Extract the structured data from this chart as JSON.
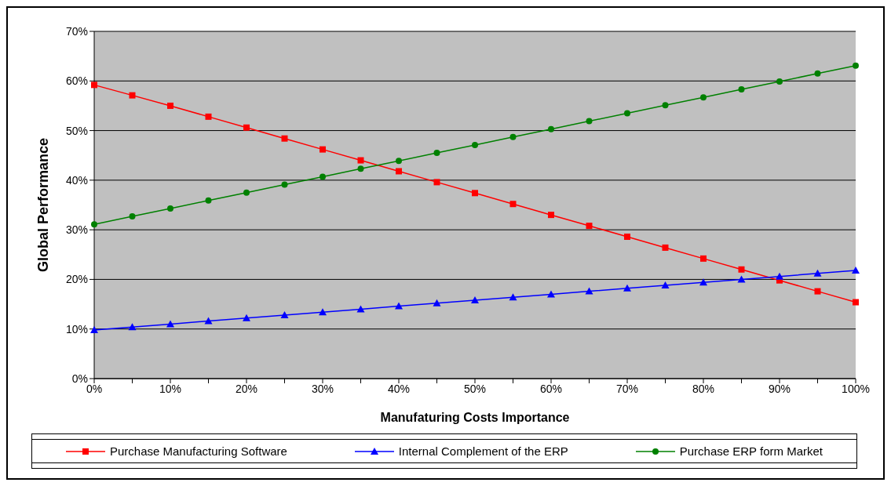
{
  "chart_data": {
    "type": "line",
    "xlabel": "Manufaturing Costs Importance",
    "ylabel": "Global Performance",
    "categories": [
      "0%",
      null,
      "10%",
      null,
      "20%",
      null,
      "30%",
      null,
      "40%",
      null,
      "50%",
      null,
      "60%",
      null,
      "70%",
      null,
      "80%",
      null,
      "90%",
      null,
      "100%"
    ],
    "series": [
      {
        "name": "Purchase Manufacturing Software",
        "color": "#ff0000",
        "marker": "square",
        "values": [
          59.2,
          57.1,
          55.0,
          52.8,
          50.6,
          48.4,
          46.2,
          44.0,
          41.8,
          39.6,
          37.4,
          35.2,
          33.0,
          30.8,
          28.6,
          26.4,
          24.2,
          22.0,
          19.8,
          17.6,
          15.4
        ]
      },
      {
        "name": "Internal Complement of the ERP",
        "color": "#0000ff",
        "marker": "triangle",
        "values": [
          9.8,
          10.4,
          11.0,
          11.6,
          12.2,
          12.8,
          13.4,
          14.0,
          14.6,
          15.2,
          15.8,
          16.4,
          17.0,
          17.6,
          18.2,
          18.8,
          19.4,
          20.0,
          20.6,
          21.2,
          21.8
        ]
      },
      {
        "name": "Purchase ERP form Market",
        "color": "#008000",
        "marker": "circle",
        "values": [
          31.1,
          32.7,
          34.3,
          35.9,
          37.5,
          39.1,
          40.7,
          42.3,
          43.9,
          45.5,
          47.1,
          48.7,
          50.3,
          51.9,
          53.5,
          55.1,
          56.7,
          58.3,
          59.9,
          61.5,
          63.1
        ]
      }
    ],
    "ylim": [
      0,
      70
    ],
    "yticks": [
      {
        "value": 0,
        "label": "0%"
      },
      {
        "value": 10,
        "label": "10%"
      },
      {
        "value": 20,
        "label": "20%"
      },
      {
        "value": 30,
        "label": "30%"
      },
      {
        "value": 40,
        "label": "40%"
      },
      {
        "value": 50,
        "label": "50%"
      },
      {
        "value": 60,
        "label": "60%"
      },
      {
        "value": 70,
        "label": "70%"
      }
    ],
    "grid": "y",
    "legend": "bottom"
  }
}
